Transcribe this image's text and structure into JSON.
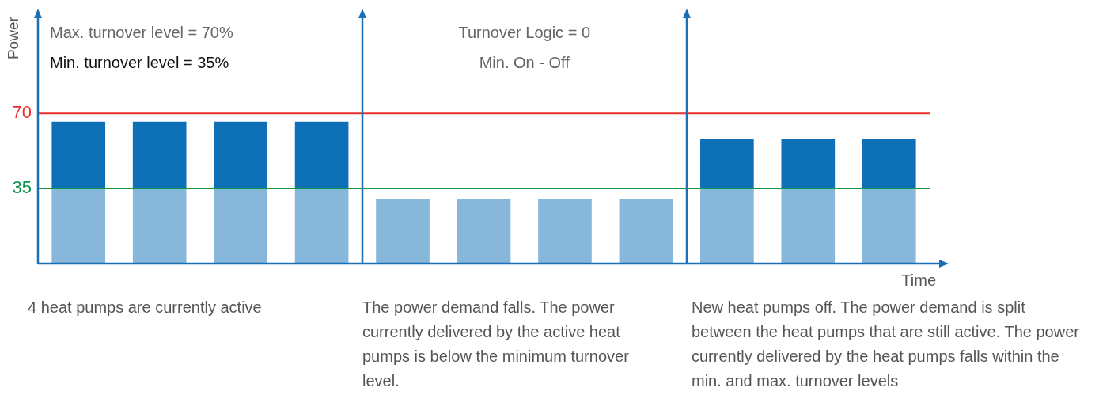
{
  "chart_data": {
    "type": "bar",
    "ylabel": "Power",
    "xlabel": "Time",
    "categories": [
      null,
      null,
      null,
      null,
      null,
      null,
      null,
      null,
      null,
      null,
      null
    ],
    "stacked": true,
    "series": [
      {
        "color": "#87b7db",
        "values": [
          35,
          35,
          35,
          35,
          30,
          30,
          30,
          30,
          35,
          35,
          35
        ]
      },
      {
        "color": "#0e71b8",
        "values": [
          31,
          31,
          31,
          31,
          null,
          null,
          null,
          null,
          23,
          23,
          23
        ]
      }
    ],
    "ylim": [
      0,
      115
    ],
    "yticks": [
      35,
      70
    ],
    "ref_lines": [
      {
        "axis": "y",
        "value": 70,
        "color": "#e8312f"
      },
      {
        "axis": "y",
        "value": 35,
        "color": "#12964a"
      }
    ],
    "annotations": [
      "Max. turnover level = 70%",
      "Min. turnover level = 35%",
      "Turnover Logic = 0",
      "Min. On - Off",
      "4 heat pumps are currently active",
      "The power demand falls. The power currently delivered by the active heat pumps is below the minimum turnover level.",
      "New heat pumps off. The power demand is split between the heat pumps that are still active. The power currently delivered by the heat pumps falls within the min. and max. turnover levels"
    ]
  }
}
